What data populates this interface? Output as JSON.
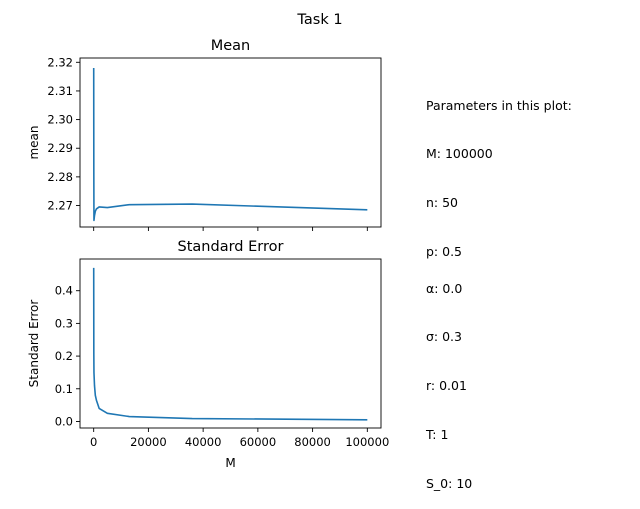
{
  "figure": {
    "suptitle": "Task 1"
  },
  "params_top": {
    "heading": "Parameters in this plot:",
    "lines": [
      "M: 100000",
      "n: 50",
      "p: 0.5"
    ]
  },
  "params_bottom": {
    "lines": [
      "α: 0.0",
      "σ: 0.3",
      "r: 0.01",
      "T: 1",
      "S_0: 10"
    ]
  },
  "colors": {
    "line": "#1f77b4",
    "axes": "#000000",
    "background": "#ffffff"
  },
  "chart_data": [
    {
      "type": "line",
      "title": "Mean",
      "xlabel": "",
      "ylabel": "mean",
      "xlim": [
        -5000,
        105000
      ],
      "ylim": [
        2.2625,
        2.3215
      ],
      "xticks": [
        0,
        20000,
        40000,
        60000,
        80000,
        100000
      ],
      "xtick_labels_visible": false,
      "yticks": [
        2.27,
        2.28,
        2.29,
        2.3,
        2.31,
        2.32
      ],
      "ytick_labels": [
        "2.27",
        "2.28",
        "2.29",
        "2.30",
        "2.31",
        "2.32"
      ],
      "series": [
        {
          "name": "mean",
          "x": [
            10,
            50,
            100,
            300,
            600,
            1000,
            2000,
            5000,
            13000,
            36000,
            100000
          ],
          "y": [
            2.318,
            2.282,
            2.2648,
            2.2665,
            2.268,
            2.2688,
            2.2695,
            2.2693,
            2.2703,
            2.2705,
            2.2685
          ]
        }
      ]
    },
    {
      "type": "line",
      "title": "Standard Error",
      "xlabel": "M",
      "ylabel": "Standard Error",
      "xlim": [
        -5000,
        105000
      ],
      "ylim": [
        -0.02,
        0.497
      ],
      "xticks": [
        0,
        20000,
        40000,
        60000,
        80000,
        100000
      ],
      "xtick_labels": [
        "0",
        "20000",
        "40000",
        "60000",
        "80000",
        "100000"
      ],
      "yticks": [
        0.0,
        0.1,
        0.2,
        0.3,
        0.4
      ],
      "ytick_labels": [
        "0.0",
        "0.1",
        "0.2",
        "0.3",
        "0.4"
      ],
      "series": [
        {
          "name": "standard error",
          "x": [
            10,
            50,
            100,
            300,
            600,
            1000,
            2000,
            5000,
            13000,
            36000,
            100000
          ],
          "y": [
            0.47,
            0.21,
            0.15,
            0.11,
            0.08,
            0.065,
            0.04,
            0.025,
            0.015,
            0.009,
            0.005
          ]
        }
      ]
    }
  ]
}
